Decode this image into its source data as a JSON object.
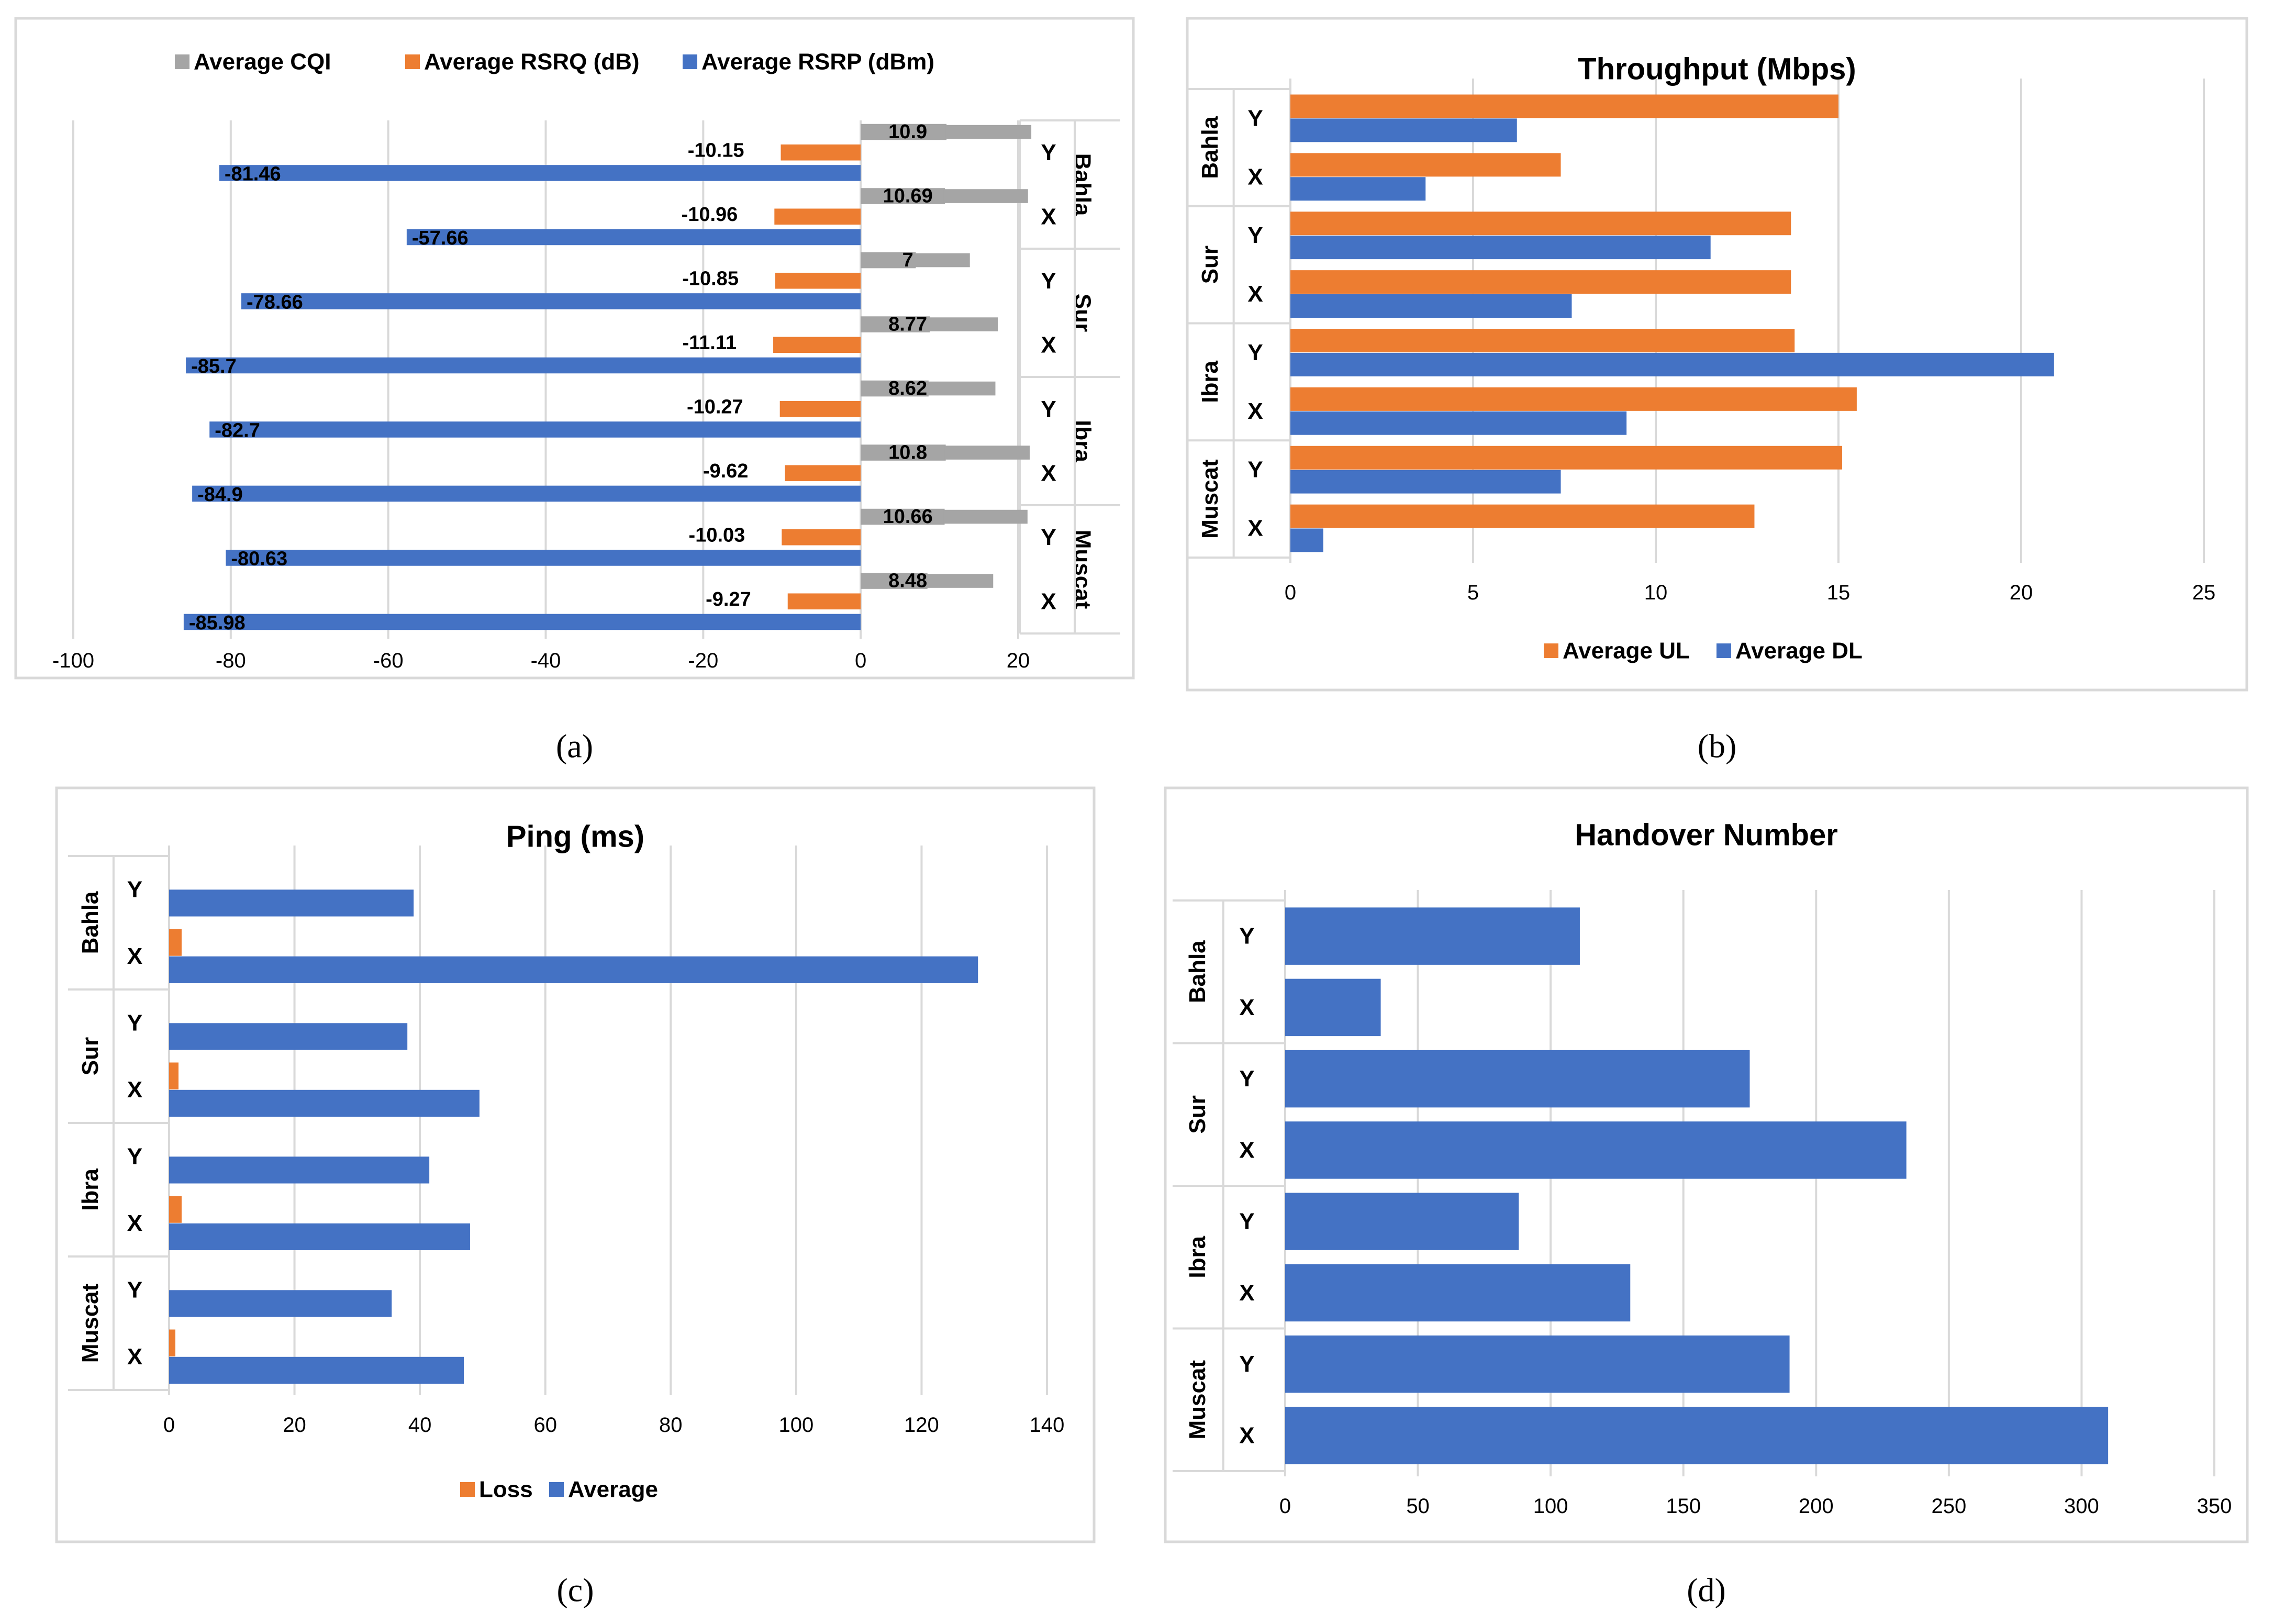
{
  "colors": {
    "blue": "#4472C4",
    "orange": "#ED7D31",
    "gray": "#A5A5A5",
    "grid": "#D9D9D9",
    "border": "#D9D9D9",
    "text": "#000000"
  },
  "chart_data": [
    {
      "type": "bar",
      "orientation": "horizontal",
      "panel_label": "(a)",
      "title": "",
      "regions": [
        "Bahla",
        "Sur",
        "Ibra",
        "Muscat"
      ],
      "sites": [
        "Y",
        "X"
      ],
      "legend": [
        "Average  CQI",
        "Average  RSRQ (dB)",
        "Average  RSRP (dBm)"
      ],
      "legend_position": "top",
      "series": [
        {
          "name": "Average  CQI",
          "color": "gray",
          "values": [
            10.9,
            10.69,
            7,
            8.77,
            8.62,
            10.8,
            10.66,
            8.48
          ],
          "labels": [
            "10.9",
            "10.69",
            "7",
            "8.77",
            "8.62",
            "10.8",
            "10.66",
            "8.48"
          ]
        },
        {
          "name": "Average  RSRQ (dB)",
          "color": "orange",
          "values": [
            -10.15,
            -10.96,
            -10.85,
            -11.11,
            -10.27,
            -9.62,
            -10.03,
            -9.27
          ],
          "labels": [
            "-10.15",
            "-10.96",
            "-10.85",
            "-11.11",
            "-10.27",
            "-9.62",
            "-10.03",
            "-9.27"
          ]
        },
        {
          "name": "Average  RSRP (dBm)",
          "color": "blue",
          "values": [
            -81.46,
            -57.66,
            -78.66,
            -85.7,
            -82.7,
            -84.9,
            -80.63,
            -85.98
          ],
          "labels": [
            "-81.46",
            "-57.66",
            "-78.66",
            "-85.7",
            "-82.7",
            "-84.9",
            "-80.63",
            "-85.98"
          ]
        }
      ],
      "xlim": [
        -100,
        20
      ],
      "xticks": [
        "-100",
        "-80",
        "-60",
        "-40",
        "-20",
        "0",
        "20"
      ],
      "grid": true
    },
    {
      "type": "bar",
      "orientation": "horizontal",
      "panel_label": "(b)",
      "title": "Throughput  (Mbps)",
      "regions": [
        "Bahla",
        "Sur",
        "Ibra",
        "Muscat"
      ],
      "sites": [
        "Y",
        "X"
      ],
      "legend": [
        "Average UL",
        "Average DL"
      ],
      "legend_position": "bottom",
      "series": [
        {
          "name": "Average UL",
          "color": "orange",
          "values": [
            15,
            7.4,
            13.7,
            13.7,
            13.8,
            15.5,
            15.1,
            12.7
          ]
        },
        {
          "name": "Average DL",
          "color": "blue",
          "values": [
            6.2,
            3.7,
            11.5,
            7.7,
            20.9,
            9.2,
            7.4,
            0.9
          ]
        }
      ],
      "xlim": [
        0,
        25
      ],
      "xticks": [
        "0",
        "5",
        "10",
        "15",
        "20",
        "25"
      ],
      "grid": true
    },
    {
      "type": "bar",
      "orientation": "horizontal",
      "panel_label": "(c)",
      "title": "Ping (ms)",
      "regions": [
        "Bahla",
        "Sur",
        "Ibra",
        "Muscat"
      ],
      "sites": [
        "Y",
        "X"
      ],
      "legend": [
        "Loss",
        "Average"
      ],
      "legend_position": "bottom",
      "series": [
        {
          "name": "Loss",
          "color": "orange",
          "values": [
            0,
            2,
            0,
            1.5,
            0,
            2,
            0,
            1
          ]
        },
        {
          "name": "Average",
          "color": "blue",
          "values": [
            39,
            129,
            38,
            49.5,
            41.5,
            48,
            35.5,
            47
          ]
        }
      ],
      "xlim": [
        0,
        140
      ],
      "xticks": [
        "0",
        "20",
        "40",
        "60",
        "80",
        "100",
        "120",
        "140"
      ],
      "grid": true
    },
    {
      "type": "bar",
      "orientation": "horizontal",
      "panel_label": "(d)",
      "title": "Handover Number",
      "regions": [
        "Bahla",
        "Sur",
        "Ibra",
        "Muscat"
      ],
      "sites": [
        "Y",
        "X"
      ],
      "legend": [],
      "series": [
        {
          "name": "Handover Number",
          "color": "blue",
          "values": [
            111,
            36,
            175,
            234,
            88,
            130,
            190,
            310
          ]
        }
      ],
      "xlim": [
        0,
        350
      ],
      "xticks": [
        "0",
        "50",
        "100",
        "150",
        "200",
        "250",
        "300",
        "350"
      ],
      "grid": true
    }
  ]
}
